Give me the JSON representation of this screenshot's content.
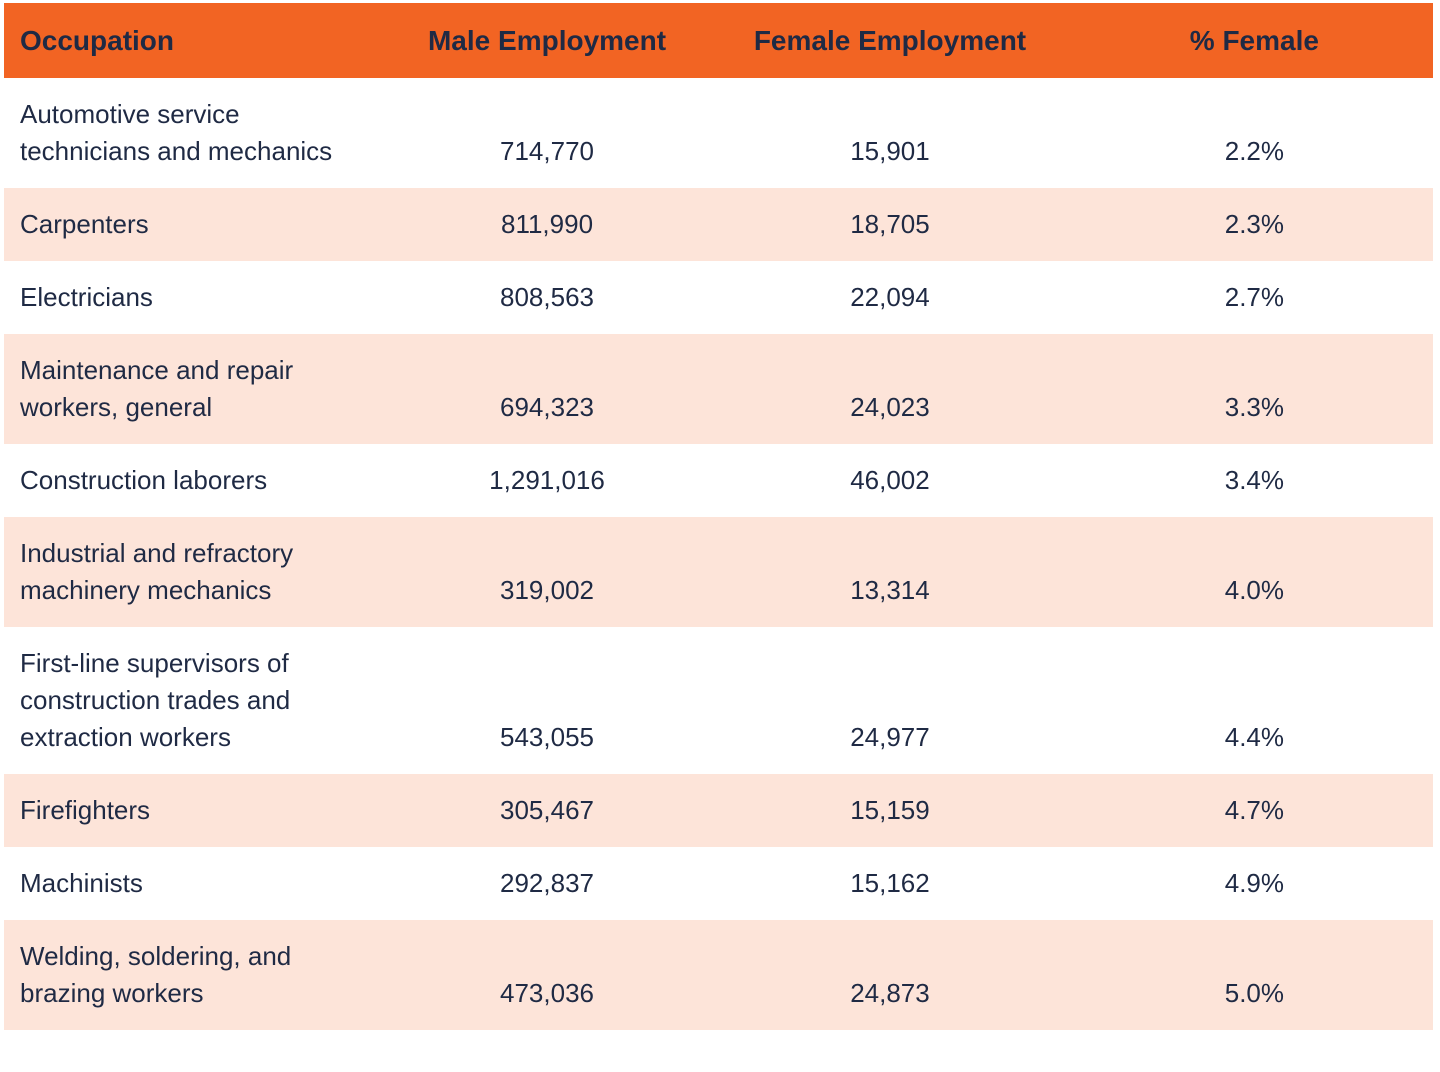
{
  "colors": {
    "header_bg": "#F26423",
    "stripe_bg": "#FDE4D9",
    "row_bg": "#FFFFFF",
    "text": "#1F2A44"
  },
  "table": {
    "columns": {
      "occupation": "Occupation",
      "male": "Male Employment",
      "female": "Female Employment",
      "pct": "% Female"
    },
    "rows": [
      {
        "occupation": "Automotive service technicians and mechanics",
        "male": "714,770",
        "female": "15,901",
        "pct": "2.2%"
      },
      {
        "occupation": "Carpenters",
        "male": "811,990",
        "female": "18,705",
        "pct": "2.3%"
      },
      {
        "occupation": "Electricians",
        "male": "808,563",
        "female": "22,094",
        "pct": "2.7%"
      },
      {
        "occupation": "Maintenance and repair workers, general",
        "male": "694,323",
        "female": "24,023",
        "pct": "3.3%"
      },
      {
        "occupation": "Construction laborers",
        "male": "1,291,016",
        "female": "46,002",
        "pct": "3.4%"
      },
      {
        "occupation": "Industrial and refractory machinery mechanics",
        "male": "319,002",
        "female": "13,314",
        "pct": "4.0%"
      },
      {
        "occupation": "First-line supervisors of construction trades and extraction workers",
        "male": "543,055",
        "female": "24,977",
        "pct": "4.4%"
      },
      {
        "occupation": "Firefighters",
        "male": "305,467",
        "female": "15,159",
        "pct": "4.7%"
      },
      {
        "occupation": "Machinists",
        "male": "292,837",
        "female": "15,162",
        "pct": "4.9%"
      },
      {
        "occupation": "Welding, soldering, and brazing workers",
        "male": "473,036",
        "female": "24,873",
        "pct": "5.0%"
      }
    ]
  },
  "chart_data": {
    "type": "table",
    "title": "",
    "columns": [
      "Occupation",
      "Male Employment",
      "Female Employment",
      "% Female"
    ],
    "rows": [
      [
        "Automotive service technicians and mechanics",
        714770,
        15901,
        "2.2%"
      ],
      [
        "Carpenters",
        811990,
        18705,
        "2.3%"
      ],
      [
        "Electricians",
        808563,
        22094,
        "2.7%"
      ],
      [
        "Maintenance and repair workers, general",
        694323,
        24023,
        "3.3%"
      ],
      [
        "Construction laborers",
        1291016,
        46002,
        "3.4%"
      ],
      [
        "Industrial and refractory machinery mechanics",
        319002,
        13314,
        "4.0%"
      ],
      [
        "First-line supervisors of construction trades and extraction workers",
        543055,
        24977,
        "4.4%"
      ],
      [
        "Firefighters",
        305467,
        15159,
        "4.7%"
      ],
      [
        "Machinists",
        292837,
        15162,
        "4.9%"
      ],
      [
        "Welding, soldering, and brazing workers",
        473036,
        24873,
        "5.0%"
      ]
    ],
    "layout": {
      "header_background": "#F26423",
      "zebra_stripe_background": "#FDE4D9",
      "stripe_pattern": "even rows shaded",
      "numeric_columns_alignment": "center",
      "occupation_column_alignment": "left"
    }
  }
}
